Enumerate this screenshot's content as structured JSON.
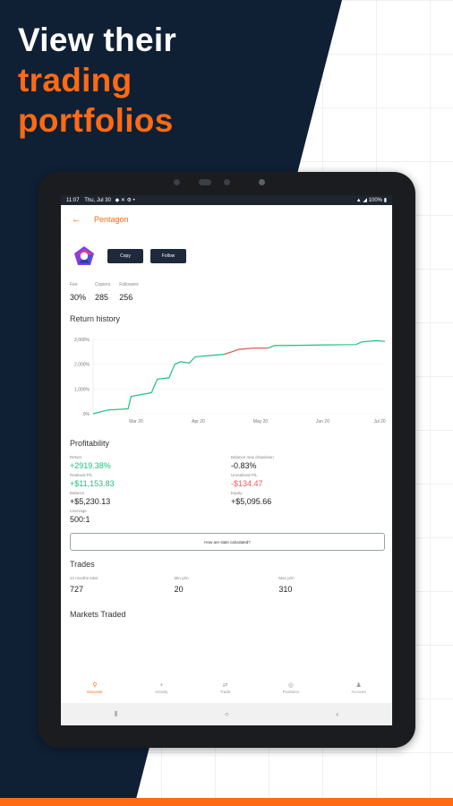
{
  "headline": {
    "line1": "View their",
    "line2": "trading",
    "line3": "portfolios"
  },
  "status": {
    "time": "11:07",
    "date": "Thu, Jul 30",
    "battery": "100%"
  },
  "appbar": {
    "back_icon": "←",
    "title": "Pentagon"
  },
  "profile": {
    "copy_label": "Copy",
    "follow_label": "Follow"
  },
  "stats": [
    {
      "label": "Fee",
      "value": "30%"
    },
    {
      "label": "Copiers",
      "value": "285"
    },
    {
      "label": "Followers",
      "value": "256"
    }
  ],
  "return_history": {
    "title": "Return history"
  },
  "chart_data": {
    "type": "line",
    "title": "Return history",
    "x_ticks": [
      "Mar 20",
      "Apr 20",
      "May 20",
      "Jun 20",
      "Jul 20"
    ],
    "y_ticks": [
      "0%",
      "1,000%",
      "2,000%",
      "3,000%"
    ],
    "ylim": [
      0,
      3000
    ],
    "series": [
      {
        "color": "#19c37d",
        "points": [
          [
            0,
            0
          ],
          [
            0.05,
            150
          ],
          [
            0.12,
            200
          ],
          [
            0.13,
            700
          ],
          [
            0.2,
            850
          ],
          [
            0.22,
            1400
          ],
          [
            0.26,
            1450
          ],
          [
            0.28,
            2000
          ],
          [
            0.3,
            2100
          ],
          [
            0.33,
            2050
          ],
          [
            0.35,
            2300
          ],
          [
            0.4,
            2350
          ],
          [
            0.45,
            2400
          ],
          [
            0.5,
            2600
          ],
          [
            0.55,
            2650
          ],
          [
            0.6,
            2650
          ],
          [
            0.62,
            2750
          ],
          [
            0.7,
            2760
          ],
          [
            0.8,
            2780
          ],
          [
            0.9,
            2790
          ],
          [
            0.92,
            2900
          ],
          [
            0.97,
            2950
          ],
          [
            1,
            2920
          ]
        ]
      }
    ]
  },
  "profitability": {
    "title": "Profitability",
    "items": [
      {
        "label": "Return",
        "value": "+2919.38%",
        "tone": "green"
      },
      {
        "label": "Balance max drawdown",
        "value": "-0.83%",
        "tone": "dark"
      },
      {
        "label": "Realised P/L",
        "value": "+$11,153.83",
        "tone": "green"
      },
      {
        "label": "Unrealised P/L",
        "value": "-$134.47",
        "tone": "red"
      },
      {
        "label": "Balance",
        "value": "+$5,230.13",
        "tone": "dark"
      },
      {
        "label": "Equity",
        "value": "+$5,095.66",
        "tone": "dark"
      },
      {
        "label": "Leverage",
        "value": "500:1",
        "tone": "dark"
      }
    ],
    "calc_label": "How are stats calculated?"
  },
  "trades": {
    "title": "Trades",
    "items": [
      {
        "label": "12 months total",
        "value": "727"
      },
      {
        "label": "Min p/m",
        "value": "20"
      },
      {
        "label": "Max p/m",
        "value": "310"
      }
    ]
  },
  "markets_title": "Markets Traded",
  "bottom_nav": [
    {
      "label": "Discover",
      "icon": "search-icon",
      "glyph": "⚲",
      "active": true
    },
    {
      "label": "Activity",
      "icon": "plus-icon",
      "glyph": "+",
      "active": false
    },
    {
      "label": "Trade",
      "icon": "arrows-icon",
      "glyph": "⇄",
      "active": false
    },
    {
      "label": "Positions",
      "icon": "target-icon",
      "glyph": "◎",
      "active": false
    },
    {
      "label": "Account",
      "icon": "user-icon",
      "glyph": "♟",
      "active": false
    }
  ],
  "system_nav": {
    "recents": "⦀",
    "home": "○",
    "back": "‹"
  },
  "colors": {
    "navy": "#0f2035",
    "accent": "#ff6a13",
    "positive": "#19c37d",
    "negative": "#f25b5b"
  }
}
